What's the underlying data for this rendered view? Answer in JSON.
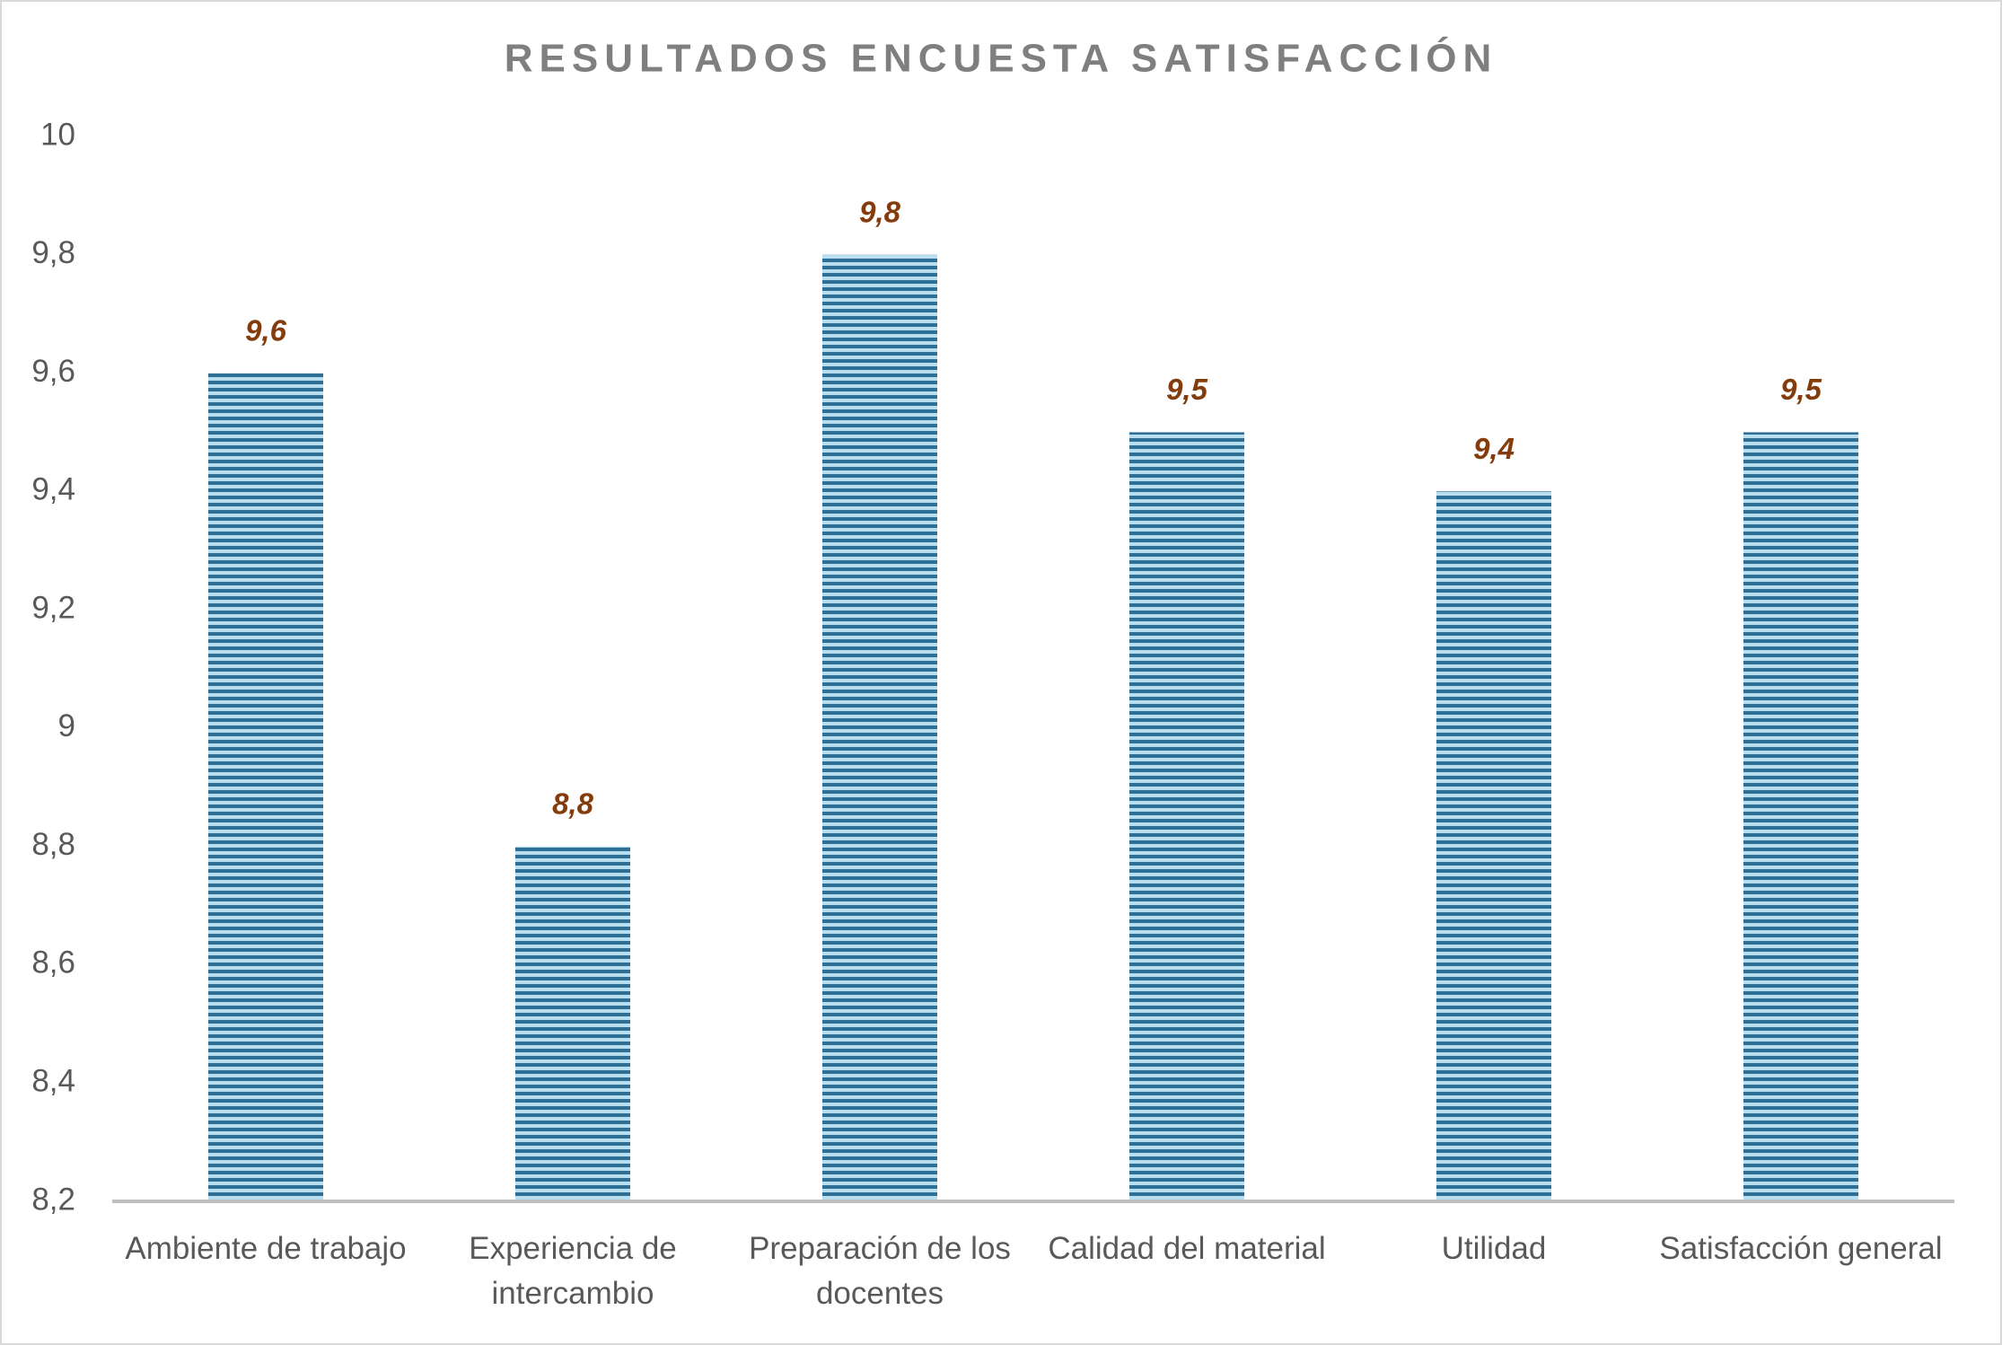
{
  "chart_data": {
    "type": "bar",
    "title": "RESULTADOS ENCUESTA SATISFACCIÓN",
    "categories": [
      "Ambiente de trabajo",
      "Experiencia de intercambio",
      "Preparación de los docentes",
      "Calidad del material",
      "Utilidad",
      "Satisfacción general"
    ],
    "values": [
      9.6,
      8.8,
      9.8,
      9.5,
      9.4,
      9.5
    ],
    "value_labels": [
      "9,6",
      "8,8",
      "9,8",
      "9,5",
      "9,4",
      "9,5"
    ],
    "color": "#2f6f96",
    "ylim": [
      8.2,
      10
    ],
    "yticks": [
      {
        "value": 8.2,
        "label": "8,2"
      },
      {
        "value": 8.4,
        "label": "8,4"
      },
      {
        "value": 8.6,
        "label": "8,6"
      },
      {
        "value": 8.8,
        "label": "8,8"
      },
      9,
      {
        "value": 9.2,
        "label": "9,2"
      },
      {
        "value": 9.4,
        "label": "9,4"
      },
      {
        "value": 9.6,
        "label": "9,6"
      },
      {
        "value": 9.8,
        "label": "9,8"
      },
      10
    ],
    "grid": false
  }
}
